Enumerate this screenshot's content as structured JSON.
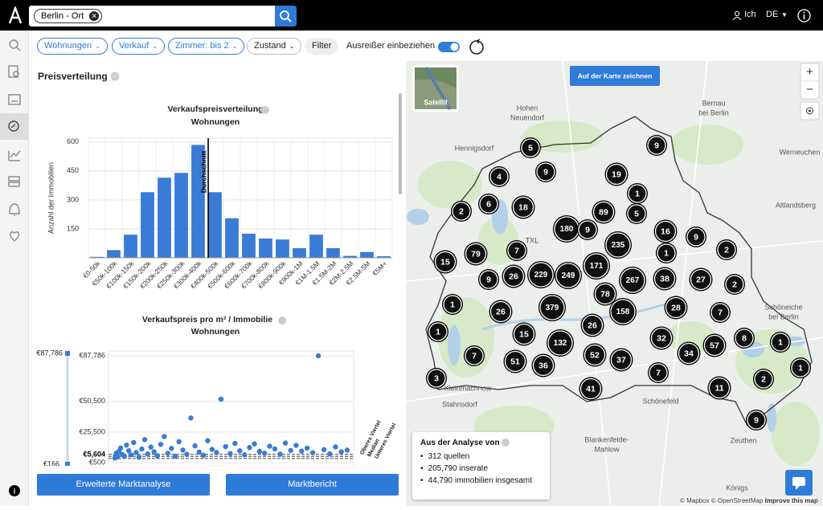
{
  "header": {
    "search_chip": "Berlin - Ort",
    "user": "Ich",
    "language": "DE"
  },
  "filters": {
    "chips": [
      "Wohnungen",
      "Verkauf",
      "Zimmer: bis 2",
      "Zustand"
    ],
    "filter_button": "Filter",
    "toggle_label": "Ausreißer einbeziehen",
    "toggle_on": true
  },
  "panel": {
    "title": "Preisverteilung",
    "buttons": [
      "Erweiterte Marktanalyse",
      "Marktbericht"
    ]
  },
  "chart_data": [
    {
      "type": "bar",
      "title": "Verkaufspreisverteilung",
      "subtitle": "Wohnungen",
      "y_label": "Anzahl der Immobilien",
      "categories": [
        "€0-50k",
        "€50k-100k",
        "€100k-150k",
        "€150k-200k",
        "€200k-250k",
        "€250k-300k",
        "€300k-400k",
        "€400k-500k",
        "€500k-600k",
        "€600k-700k",
        "€700k-800k",
        "€800k-900k",
        "€900k-1M",
        "€1M-1.5M",
        "€1.5M-2M",
        "€2M-2.5M",
        "€2.5M-5M",
        "€5M+"
      ],
      "values": [
        5,
        40,
        120,
        340,
        415,
        440,
        585,
        340,
        205,
        125,
        100,
        95,
        50,
        120,
        50,
        10,
        30,
        8
      ],
      "color": "#3a7bd5",
      "ylim": [
        0,
        620
      ],
      "yticks": [
        150,
        300,
        450,
        600
      ],
      "grid": true,
      "annotation": "Durchschnitt"
    },
    {
      "type": "scatter",
      "title": "Verkaufspreis pro m² / Immobilie",
      "subtitle": "Wohnungen",
      "values": [
        4200,
        6100,
        8300,
        5200,
        9800,
        12400,
        7100,
        5600,
        14800,
        10200,
        6800,
        16900,
        8800,
        4900,
        11600,
        19300,
        7600,
        13200,
        9400,
        6200,
        15400,
        21800,
        8100,
        12100,
        5800,
        17600,
        10800,
        7300,
        37000,
        14200,
        9100,
        6500,
        18400,
        11300,
        8700,
        52300,
        13600,
        7900,
        16200,
        10100,
        6900,
        12800,
        15800,
        9600,
        8200,
        13900,
        11700,
        7400,
        16500,
        10400,
        14600,
        9900,
        12300,
        8600,
        87786,
        11100,
        7700,
        13300,
        9300,
        10700
      ],
      "color": "#3a7bd5",
      "ylim": [
        500,
        87786
      ],
      "yticks": [
        {
          "value": 500,
          "label": "€500"
        },
        {
          "value": 25500,
          "label": "€25,500"
        },
        {
          "value": 50500,
          "label": "€50,500"
        },
        {
          "value": 87786,
          "label": "€87,786"
        }
      ],
      "reference_lines": [
        {
          "name": "Oberes Viertel",
          "value": 7200
        },
        {
          "name": "Median",
          "value": 5604
        },
        {
          "name": "Unteres Viertel",
          "value": 3900
        }
      ],
      "median_label": "€5,604",
      "range": {
        "max": 87786,
        "max_label": "€87,786",
        "min": 166,
        "min_label": "€166"
      }
    }
  ],
  "map": {
    "satellite": "Satellit",
    "draw_button": "Auf der Karte zeichnen",
    "zoom_in": "+",
    "zoom_out": "−",
    "places": [
      [
        "Hohen",
        "Neuendorf"
      ],
      [
        "Hennigsdorf"
      ],
      [
        "Bernau",
        "bei Berlin"
      ],
      [
        "Werneuchen"
      ],
      [
        "Altlandsberg"
      ],
      [
        "TXL"
      ],
      [
        "Schöneiche",
        "bei Berlin"
      ],
      [
        "Kleinmachnow"
      ],
      [
        "Stahnsdorf"
      ],
      [
        "Schönefeld"
      ],
      [
        "Blankenfelde-",
        "Mahlow"
      ],
      [
        "Zeuthen"
      ],
      [
        "Königs"
      ]
    ],
    "clusters": [
      5,
      9,
      4,
      9,
      19,
      1,
      6,
      18,
      2,
      89,
      5,
      180,
      9,
      16,
      9,
      235,
      2,
      15,
      79,
      7,
      1,
      171,
      26,
      229,
      249,
      9,
      267,
      38,
      27,
      2,
      78,
      1,
      26,
      379,
      158,
      28,
      7,
      1,
      15,
      26,
      8,
      32,
      1,
      132,
      57,
      7,
      34,
      52,
      51,
      37,
      36,
      7,
      2,
      1,
      3,
      41,
      11,
      9
    ],
    "analysis": {
      "title": "Aus der Analyse von",
      "items": [
        "312 quellen",
        "205,790 inserate",
        "44,790 immobilien insgesamt"
      ]
    },
    "attribution": [
      "© Mapbox © OpenStreetMap",
      "Improve this map"
    ]
  }
}
